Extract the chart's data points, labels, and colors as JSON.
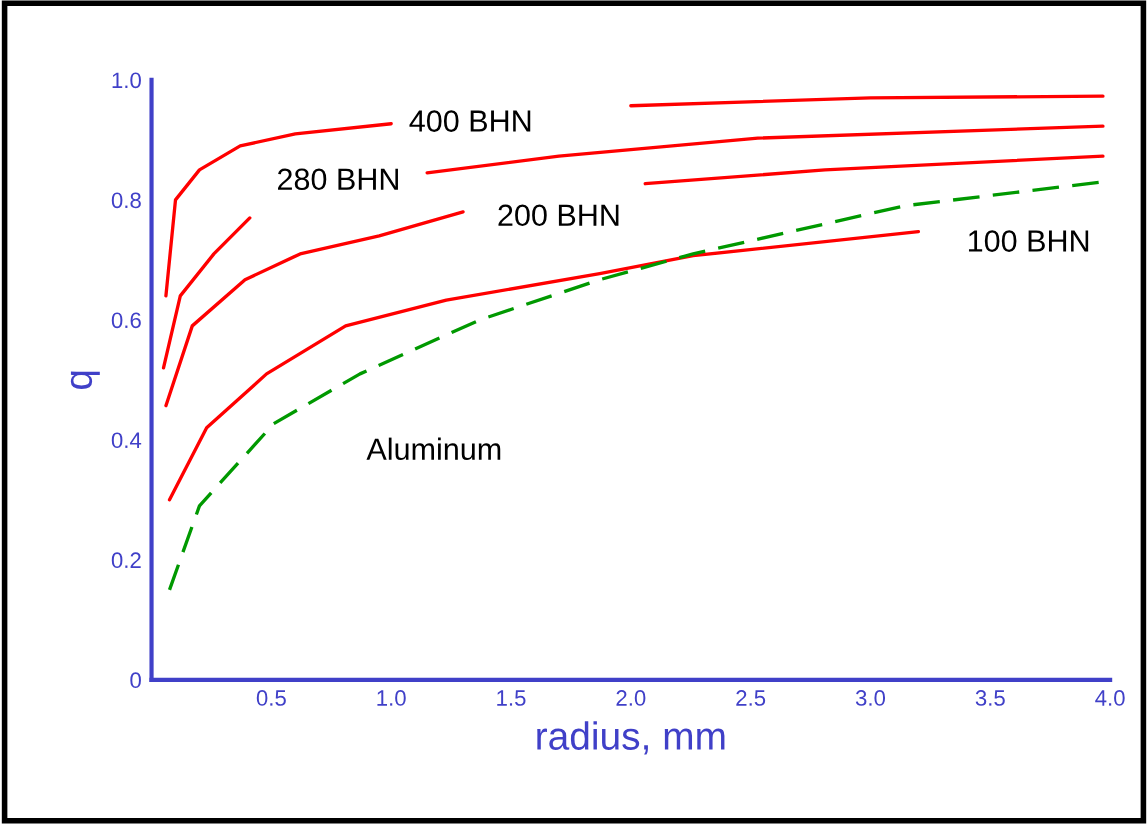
{
  "chart_data": {
    "type": "line",
    "xlabel": "radius, mm",
    "ylabel": "q",
    "xlim": [
      0,
      4.0
    ],
    "ylim": [
      0,
      1.0
    ],
    "xticks": [
      0.5,
      {
        "value": 1,
        "label": "1.0"
      },
      1.5,
      {
        "value": 2,
        "label": "2.0"
      },
      2.5,
      {
        "value": 3,
        "label": "3.0"
      },
      3.5,
      {
        "value": 4,
        "label": "4.0"
      }
    ],
    "yticks": [
      0,
      0.2,
      0.4,
      0.6,
      0.8,
      {
        "value": 1,
        "label": "1.0"
      }
    ],
    "grid": false,
    "legend": false,
    "marker": "none",
    "series": [
      {
        "color": "#ff0000",
        "line_style": "solid",
        "x": [
          0.06,
          0.1,
          0.2,
          0.37,
          0.6,
          1.0,
          1.05,
          1.9,
          2.0,
          3.0,
          3.97
        ],
        "values": [
          0.64,
          0.8,
          0.85,
          0.89,
          0.91,
          0.927,
          null,
          null,
          0.957,
          0.97,
          0.973
        ]
      },
      {
        "color": "#ff0000",
        "line_style": "solid",
        "x": [
          0.05,
          0.12,
          0.26,
          0.41,
          0.6,
          1.15,
          1.7,
          2.53,
          3.97
        ],
        "values": [
          0.52,
          0.64,
          0.71,
          0.77,
          null,
          0.845,
          0.873,
          0.903,
          0.923
        ]
      },
      {
        "color": "#ff0000",
        "line_style": "solid",
        "x": [
          0.06,
          0.17,
          0.39,
          0.62,
          0.95,
          1.3,
          1.6,
          2.06,
          2.81,
          3.97
        ],
        "values": [
          0.457,
          0.59,
          0.667,
          0.71,
          0.74,
          0.78,
          null,
          0.827,
          0.85,
          0.873
        ]
      },
      {
        "color": "#ff0000",
        "line_style": "solid",
        "x": [
          0.075,
          0.23,
          0.48,
          0.81,
          1.23,
          1.87,
          2.26,
          3.2
        ],
        "values": [
          0.3,
          0.42,
          0.51,
          0.59,
          0.633,
          0.677,
          0.707,
          0.747
        ]
      },
      {
        "color": "#009900",
        "line_style": "dashed",
        "x": [
          0.075,
          0.2,
          0.51,
          0.87,
          1.37,
          1.87,
          2.26,
          3.14,
          3.97
        ],
        "values": [
          0.15,
          0.29,
          0.427,
          0.51,
          0.6,
          0.667,
          0.71,
          0.79,
          0.83
        ]
      }
    ],
    "annotations": [
      "400 BHN",
      "280 BHN",
      "200 BHN",
      "100 BHN",
      "Aluminum"
    ]
  }
}
